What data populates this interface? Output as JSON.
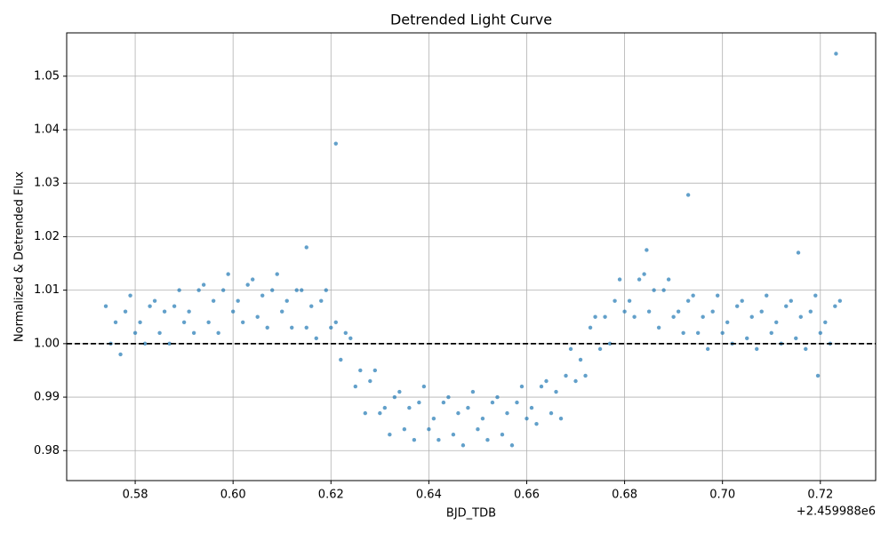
{
  "chart_data": {
    "type": "scatter",
    "title": "Detrended Light Curve",
    "x_label": "BJD_TDB",
    "y_label": "Normalized & Detrended Flux",
    "x_offset_label": "+2.459988e6",
    "color": "#1f77b4",
    "grid": true,
    "hline": 1,
    "xlim": [
      0.566,
      0.7313
    ],
    "ylim": [
      0.9744,
      1.0581
    ],
    "xticks": [
      0.58,
      {
        "value": 0.6,
        "label": "0.60"
      },
      0.62,
      0.64,
      0.66,
      0.68,
      {
        "value": 0.7,
        "label": "0.70"
      },
      0.72
    ],
    "yticks": [
      0.98,
      0.99,
      {
        "value": 1,
        "label": "1.00"
      },
      1.01,
      1.02,
      1.03,
      1.04,
      1.05
    ],
    "x": [
      0.574,
      0.575,
      0.576,
      0.577,
      0.578,
      0.579,
      0.58,
      0.581,
      0.582,
      0.583,
      0.584,
      0.585,
      0.586,
      0.587,
      0.588,
      0.589,
      0.59,
      0.591,
      0.592,
      0.593,
      0.594,
      0.595,
      0.596,
      0.597,
      0.598,
      0.599,
      0.6,
      0.601,
      0.602,
      0.603,
      0.604,
      0.605,
      0.606,
      0.607,
      0.608,
      0.609,
      0.61,
      0.611,
      0.612,
      0.613,
      0.614,
      0.615,
      0.616,
      0.617,
      0.618,
      0.619,
      0.62,
      0.621,
      0.622,
      0.623,
      0.624,
      0.625,
      0.626,
      0.627,
      0.628,
      0.629,
      0.63,
      0.631,
      0.632,
      0.633,
      0.634,
      0.635,
      0.636,
      0.637,
      0.638,
      0.639,
      0.64,
      0.641,
      0.642,
      0.643,
      0.644,
      0.645,
      0.646,
      0.647,
      0.648,
      0.649,
      0.65,
      0.651,
      0.652,
      0.653,
      0.654,
      0.655,
      0.656,
      0.657,
      0.658,
      0.659,
      0.66,
      0.661,
      0.662,
      0.663,
      0.664,
      0.665,
      0.666,
      0.667,
      0.668,
      0.669,
      0.67,
      0.671,
      0.672,
      0.673,
      0.674,
      0.675,
      0.676,
      0.677,
      0.678,
      0.679,
      0.68,
      0.681,
      0.682,
      0.683,
      0.684,
      0.685,
      0.686,
      0.687,
      0.688,
      0.689,
      0.69,
      0.691,
      0.692,
      0.693,
      0.694,
      0.695,
      0.696,
      0.697,
      0.698,
      0.699,
      0.7,
      0.701,
      0.702,
      0.703,
      0.704,
      0.705,
      0.706,
      0.707,
      0.708,
      0.709,
      0.71,
      0.711,
      0.712,
      0.713,
      0.714,
      0.715,
      0.716,
      0.717,
      0.718,
      0.719,
      0.72,
      0.721,
      0.722,
      0.723,
      0.724,
      0.621,
      0.693,
      0.7232,
      0.615,
      0.6845,
      0.7155,
      0.7195
    ],
    "values": [
      1.007,
      1.0,
      1.004,
      0.998,
      1.006,
      1.009,
      1.002,
      1.004,
      1.0,
      1.007,
      1.008,
      1.002,
      1.006,
      1.0,
      1.007,
      1.01,
      1.004,
      1.006,
      1.002,
      1.01,
      1.011,
      1.004,
      1.008,
      1.002,
      1.01,
      1.013,
      1.006,
      1.008,
      1.004,
      1.011,
      1.012,
      1.005,
      1.009,
      1.003,
      1.01,
      1.013,
      1.006,
      1.008,
      1.003,
      1.01,
      1.01,
      1.003,
      1.007,
      1.001,
      1.008,
      1.01,
      1.003,
      1.004,
      0.997,
      1.002,
      1.001,
      0.992,
      0.995,
      0.987,
      0.993,
      0.995,
      0.987,
      0.988,
      0.983,
      0.99,
      0.991,
      0.984,
      0.988,
      0.982,
      0.989,
      0.992,
      0.984,
      0.986,
      0.982,
      0.989,
      0.99,
      0.983,
      0.987,
      0.981,
      0.988,
      0.991,
      0.984,
      0.986,
      0.982,
      0.989,
      0.99,
      0.983,
      0.987,
      0.981,
      0.989,
      0.992,
      0.986,
      0.988,
      0.985,
      0.992,
      0.993,
      0.987,
      0.991,
      0.986,
      0.994,
      0.999,
      0.993,
      0.997,
      0.994,
      1.003,
      1.005,
      0.999,
      1.005,
      1.0,
      1.008,
      1.012,
      1.006,
      1.008,
      1.005,
      1.012,
      1.013,
      1.006,
      1.01,
      1.003,
      1.01,
      1.012,
      1.005,
      1.006,
      1.002,
      1.008,
      1.009,
      1.002,
      1.005,
      0.999,
      1.006,
      1.009,
      1.002,
      1.004,
      1.0,
      1.007,
      1.008,
      1.001,
      1.005,
      0.999,
      1.006,
      1.009,
      1.002,
      1.004,
      1.0,
      1.007,
      1.008,
      1.001,
      1.005,
      0.999,
      1.006,
      1.009,
      1.002,
      1.004,
      1.0,
      1.007,
      1.008,
      1.0374,
      1.0278,
      1.0542,
      1.018,
      1.0175,
      1.017,
      0.994
    ]
  }
}
